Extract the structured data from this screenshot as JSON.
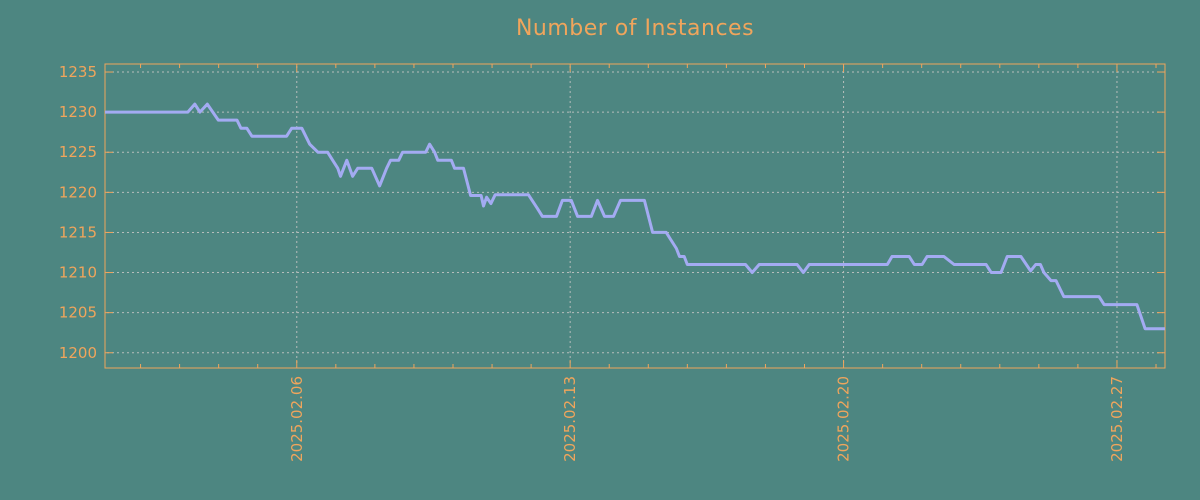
{
  "page": {
    "background": "#4d8681"
  },
  "chart_data": {
    "type": "line",
    "title": "Number of Instances",
    "xlabel": "",
    "ylabel": "",
    "grid": true,
    "legend": null,
    "title_color": "#f0a55c",
    "axis_color": "#f0a55c",
    "grid_color": "#b6bdbb",
    "line_color": "#a3abf2",
    "x_axis": {
      "unit": "date",
      "month": "2025-02",
      "xlim_days": [
        1.09,
        28.23
      ],
      "minor_ticks_every_day": true,
      "major_ticks": [
        {
          "day": 6,
          "label": "2025.02.06"
        },
        {
          "day": 13,
          "label": "2025.02.13"
        },
        {
          "day": 20,
          "label": "2025.02.20"
        },
        {
          "day": 27,
          "label": "2025.02.27"
        }
      ]
    },
    "y_axis": {
      "ylim": [
        1198.1,
        1236.0
      ],
      "ticks": [
        1200,
        1205,
        1210,
        1215,
        1220,
        1225,
        1230,
        1235
      ]
    },
    "series": [
      {
        "name": "instances",
        "points": [
          [
            1.09,
            1230
          ],
          [
            3.21,
            1230
          ],
          [
            3.39,
            1231
          ],
          [
            3.52,
            1230
          ],
          [
            3.71,
            1231
          ],
          [
            3.85,
            1230
          ],
          [
            3.99,
            1229
          ],
          [
            4.47,
            1229
          ],
          [
            4.57,
            1228
          ],
          [
            4.72,
            1228
          ],
          [
            4.85,
            1227
          ],
          [
            5.74,
            1227
          ],
          [
            5.87,
            1228
          ],
          [
            6.13,
            1228
          ],
          [
            6.33,
            1226
          ],
          [
            6.54,
            1225
          ],
          [
            6.79,
            1225
          ],
          [
            6.92,
            1224
          ],
          [
            7.05,
            1223
          ],
          [
            7.12,
            1222
          ],
          [
            7.28,
            1224
          ],
          [
            7.43,
            1222
          ],
          [
            7.56,
            1223
          ],
          [
            7.92,
            1223
          ],
          [
            8.12,
            1220.8
          ],
          [
            8.3,
            1223
          ],
          [
            8.4,
            1224
          ],
          [
            8.61,
            1224
          ],
          [
            8.71,
            1225
          ],
          [
            9.3,
            1225
          ],
          [
            9.4,
            1226
          ],
          [
            9.53,
            1225
          ],
          [
            9.61,
            1224
          ],
          [
            9.96,
            1224
          ],
          [
            10.04,
            1223
          ],
          [
            10.27,
            1223
          ],
          [
            10.45,
            1219.6
          ],
          [
            10.72,
            1219.6
          ],
          [
            10.78,
            1218.3
          ],
          [
            10.86,
            1219.4
          ],
          [
            10.97,
            1218.6
          ],
          [
            11.08,
            1219.7
          ],
          [
            11.93,
            1219.7
          ],
          [
            12.16,
            1218
          ],
          [
            12.29,
            1217
          ],
          [
            12.65,
            1217
          ],
          [
            12.8,
            1219
          ],
          [
            13.03,
            1219
          ],
          [
            13.19,
            1217
          ],
          [
            13.54,
            1217
          ],
          [
            13.7,
            1219
          ],
          [
            13.88,
            1217
          ],
          [
            14.11,
            1217
          ],
          [
            14.29,
            1219
          ],
          [
            14.9,
            1219
          ],
          [
            15.11,
            1215
          ],
          [
            15.46,
            1215
          ],
          [
            15.59,
            1214
          ],
          [
            15.72,
            1213
          ],
          [
            15.8,
            1212
          ],
          [
            15.92,
            1212
          ],
          [
            16.0,
            1211
          ],
          [
            17.49,
            1211
          ],
          [
            17.66,
            1210
          ],
          [
            17.84,
            1211
          ],
          [
            18.81,
            1211
          ],
          [
            18.97,
            1210
          ],
          [
            19.12,
            1211
          ],
          [
            21.12,
            1211
          ],
          [
            21.24,
            1212
          ],
          [
            21.68,
            1212
          ],
          [
            21.81,
            1211
          ],
          [
            22.01,
            1211
          ],
          [
            22.14,
            1212
          ],
          [
            22.57,
            1212
          ],
          [
            22.83,
            1211
          ],
          [
            23.65,
            1211
          ],
          [
            23.78,
            1210
          ],
          [
            24.03,
            1210
          ],
          [
            24.19,
            1212
          ],
          [
            24.54,
            1212
          ],
          [
            24.79,
            1210.2
          ],
          [
            24.92,
            1211
          ],
          [
            25.04,
            1211
          ],
          [
            25.13,
            1210
          ],
          [
            25.31,
            1209
          ],
          [
            25.44,
            1209
          ],
          [
            25.64,
            1207
          ],
          [
            26.54,
            1207
          ],
          [
            26.67,
            1206
          ],
          [
            27.51,
            1206
          ],
          [
            27.72,
            1203
          ],
          [
            28.23,
            1203
          ]
        ]
      }
    ]
  }
}
